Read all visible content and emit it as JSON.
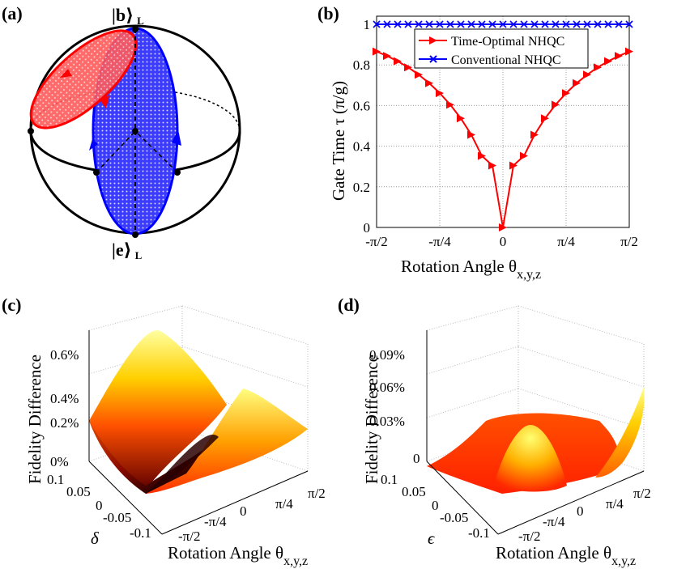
{
  "panels": {
    "a": {
      "label": "(a)",
      "top_state": "|b⟩",
      "bottom_state": "|e⟩",
      "subscript": "L"
    },
    "b": {
      "label": "(b)"
    },
    "c": {
      "label": "(c)"
    },
    "d": {
      "label": "(d)"
    }
  },
  "chart_data": [
    {
      "panel": "b",
      "type": "line",
      "xlabel": "Rotation Angle θ",
      "xlabel_sub": "x,y,z",
      "ylabel": "Gate Time τ (π/g)",
      "xlim": [
        -1.5708,
        1.5708
      ],
      "ylim": [
        0,
        1
      ],
      "xticks": [
        -1.5708,
        -0.7854,
        0,
        0.7854,
        1.5708
      ],
      "xtick_labels": [
        "-π/2",
        "-π/4",
        "0",
        "π/4",
        "π/2"
      ],
      "yticks": [
        0,
        0.2,
        0.4,
        0.6,
        0.8,
        1
      ],
      "ytick_labels": [
        "0",
        "0.2",
        "0.4",
        "0.6",
        "0.8",
        "1"
      ],
      "grid": true,
      "legend_position": "top-right",
      "x": [
        -1.5708,
        -1.4399,
        -1.309,
        -1.1781,
        -1.0472,
        -0.9163,
        -0.7854,
        -0.6545,
        -0.5236,
        -0.3927,
        -0.2618,
        -0.1309,
        0,
        0.1309,
        0.2618,
        0.3927,
        0.5236,
        0.6545,
        0.7854,
        0.9163,
        1.0472,
        1.1781,
        1.309,
        1.4399,
        1.5708
      ],
      "series": [
        {
          "name": "Time-Optimal NHQC",
          "color": "#ff0000",
          "marker": "triangle-right",
          "values": [
            0.866,
            0.844,
            0.818,
            0.788,
            0.752,
            0.71,
            0.661,
            0.604,
            0.537,
            0.456,
            0.352,
            0.305,
            0,
            0.305,
            0.352,
            0.456,
            0.537,
            0.604,
            0.661,
            0.71,
            0.752,
            0.788,
            0.818,
            0.844,
            0.866
          ]
        },
        {
          "name": "Conventional NHQC",
          "color": "#0000ff",
          "marker": "x",
          "values": [
            1,
            1,
            1,
            1,
            1,
            1,
            1,
            1,
            1,
            1,
            1,
            1,
            1,
            1,
            1,
            1,
            1,
            1,
            1,
            1,
            1,
            1,
            1,
            1,
            1
          ]
        }
      ]
    },
    {
      "panel": "c",
      "type": "surface",
      "zlabel": "Fidelity Difference",
      "ztick_labels": [
        "0%",
        "0.2%",
        "0.4%",
        "0.6%"
      ],
      "y_label": "δ",
      "ytick_labels": [
        "0.1",
        "0.05",
        "0",
        "-0.05",
        "-0.1"
      ],
      "xlabel": "Rotation Angle θ",
      "xlabel_sub": "x,y,z",
      "xtick_labels": [
        "-π/2",
        "-π/4",
        "0",
        "π/4",
        "π/2"
      ],
      "colormap": "hot"
    },
    {
      "panel": "d",
      "type": "surface",
      "zlabel": "Fidelity Difference",
      "ztick_labels": [
        "0",
        "0.03%",
        "0.06%",
        "0.09%"
      ],
      "y_label": "ϵ",
      "ytick_labels": [
        "0.1",
        "0.05",
        "0",
        "-0.05",
        "-0.1"
      ],
      "xlabel": "Rotation Angle θ",
      "xlabel_sub": "x,y,z",
      "xtick_labels": [
        "-π/2",
        "-π/4",
        "0",
        "π/4",
        "π/2"
      ],
      "colormap": "hot"
    }
  ]
}
